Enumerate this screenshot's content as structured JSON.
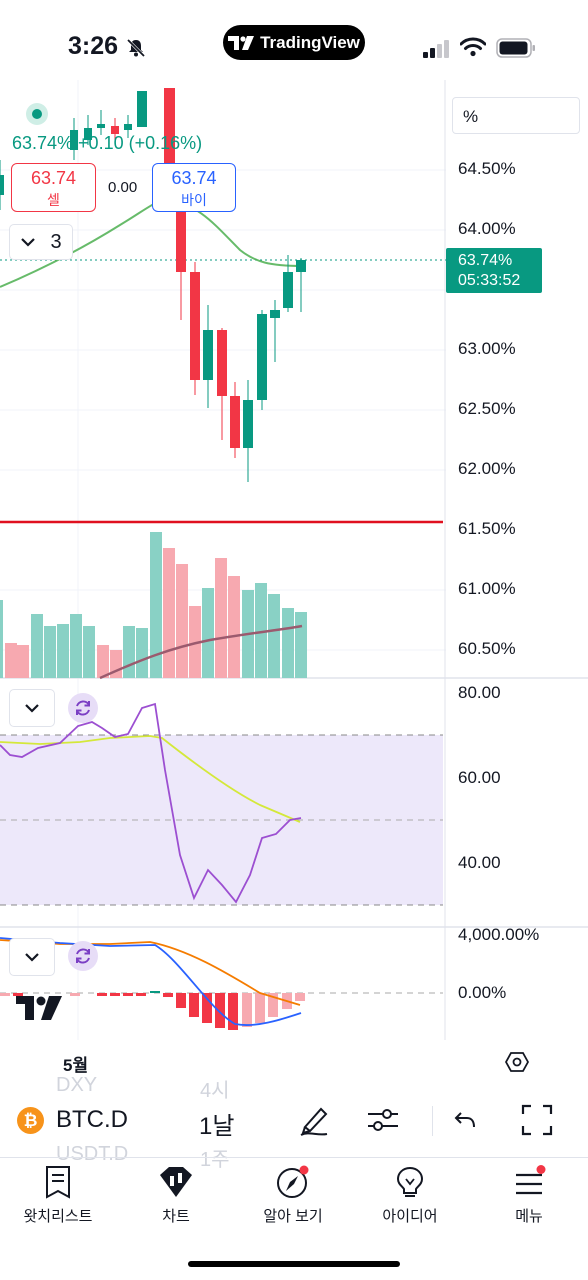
{
  "status_bar": {
    "time": "3:26",
    "app_pill": "TradingView"
  },
  "chart": {
    "legend_value": "63.74%  +0.10  (+0.16%)",
    "sell": {
      "price": "63.74",
      "label": "셀"
    },
    "buy": {
      "price": "63.74",
      "label": "바이"
    },
    "spread": "0.00",
    "indicators_count": "3",
    "scale_unit": "%",
    "last_price": "63.74%",
    "countdown": "05:33:52",
    "price_axis": [
      "64.50%",
      "64.00%",
      "63.00%",
      "62.50%",
      "62.00%",
      "61.50%",
      "61.00%",
      "60.50%"
    ],
    "rsi_axis": [
      "80.00",
      "60.00",
      "40.00"
    ],
    "macd_axis": [
      "4,000.00%",
      "0.00%"
    ],
    "date_label": "5월",
    "colors": {
      "up": "#089981",
      "down": "#f23645",
      "accent": "#2962ff",
      "rsi": "#9c4fd1"
    }
  },
  "toolbar": {
    "symbol": "BTC.D",
    "interval": "1날",
    "ghost_symbols": [
      "DXY",
      "4시",
      "USDT.D",
      "1주"
    ],
    "icons": [
      "pen-icon",
      "sliders-icon",
      "undo-icon",
      "fullscreen-icon"
    ]
  },
  "nav": [
    {
      "label": "왓치리스트",
      "icon": "watchlist-icon"
    },
    {
      "label": "차트",
      "icon": "chart-icon"
    },
    {
      "label": "알아 보기",
      "icon": "compass-icon"
    },
    {
      "label": "아이디어",
      "icon": "lightbulb-icon"
    },
    {
      "label": "메뉴",
      "icon": "menu-icon"
    }
  ]
}
